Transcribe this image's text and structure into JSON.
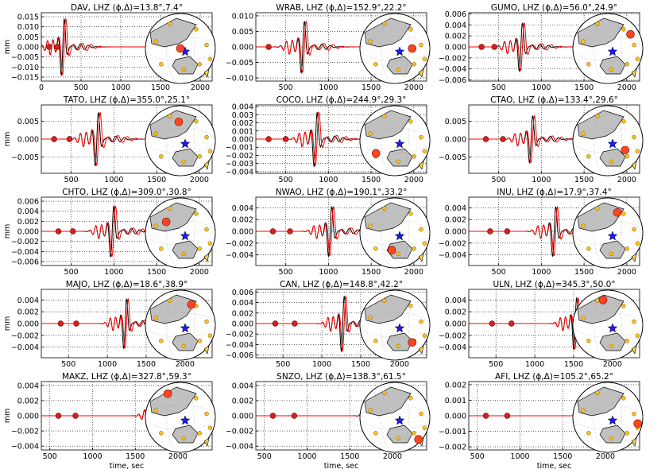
{
  "figure": {
    "ylabel": "mm",
    "xlabel": "time, sec",
    "colors": {
      "observed": "#000000",
      "synthetic": "#ff0000",
      "station": "#ff4422",
      "other_station": "#ffc020",
      "event": "#1a1aff",
      "land": "#c0c0c0"
    }
  },
  "chart_data": [
    {
      "type": "line",
      "station": "DAV",
      "title": "DAV, LHZ (ϕ,Δ)=13.8°,7.4°",
      "xlim": [
        0,
        2150
      ],
      "xticks": [
        "0",
        "500",
        "1000",
        "1500",
        "2000"
      ],
      "ylim": [
        -0.017,
        0.017
      ],
      "yticks": [
        "0.015",
        "0.010",
        "0.005",
        "0.000",
        "−0.005",
        "−0.010",
        "−0.015"
      ],
      "ytickvals": [
        0.015,
        0.01,
        0.005,
        0,
        -0.005,
        -0.01,
        -0.015
      ],
      "arrival": 270,
      "amp": 0.016,
      "station_pos": [
        0.0,
        0.0
      ],
      "markers": [
        100,
        200
      ]
    },
    {
      "type": "line",
      "station": "WRAB",
      "title": "WRAB, LHZ (ϕ,Δ)=152.9°,22.2°",
      "xlim": [
        150,
        2150
      ],
      "xticks": [
        "500",
        "1000",
        "1500",
        "2000"
      ],
      "ylim": [
        -0.011,
        0.011
      ],
      "yticks": [
        "0.010",
        "0.005",
        "0.000",
        "−0.005",
        "−0.010"
      ],
      "ytickvals": [
        0.01,
        0.005,
        0,
        -0.005,
        -0.01
      ],
      "arrival": 700,
      "amp": 0.0095,
      "station_pos": [
        0.55,
        0.0
      ],
      "markers": [
        300
      ]
    },
    {
      "type": "line",
      "station": "GUMO",
      "title": "GUMO, LHZ (ϕ,Δ)=56.0°,24.9°",
      "xlim": [
        150,
        2150
      ],
      "xticks": [
        "500",
        "1000",
        "1500",
        "2000"
      ],
      "ylim": [
        -0.0062,
        0.0062
      ],
      "yticks": [
        "0.006",
        "0.004",
        "0.002",
        "0.000",
        "−0.002",
        "−0.004",
        "−0.006"
      ],
      "ytickvals": [
        0.006,
        0.004,
        0.002,
        0,
        -0.002,
        -0.004,
        -0.006
      ],
      "arrival": 760,
      "amp": 0.005,
      "station_pos": [
        0.72,
        -0.45
      ],
      "markers": [
        300,
        450
      ]
    },
    {
      "type": "line",
      "station": "TATO",
      "title": "TATO, LHZ (ϕ,Δ)=355.0°,25.1°",
      "xlim": [
        150,
        2150
      ],
      "xticks": [
        "500",
        "1000",
        "1500",
        "2000"
      ],
      "ylim": [
        -0.0095,
        0.0095
      ],
      "yticks": [
        "0.005",
        "0.000",
        "−0.005"
      ],
      "ytickvals": [
        0.005,
        0,
        -0.005
      ],
      "arrival": 800,
      "amp": 0.0085,
      "station_pos": [
        -0.05,
        -0.6
      ],
      "markers": [
        300,
        480
      ]
    },
    {
      "type": "line",
      "station": "COCO",
      "title": "COCO, LHZ (ϕ,Δ)=244.9°,29.3°",
      "xlim": [
        150,
        2150
      ],
      "xticks": [
        "500",
        "1000",
        "1500",
        "2000"
      ],
      "ylim": [
        -0.0042,
        0.0042
      ],
      "yticks": [
        "0.004",
        "0.003",
        "0.002",
        "0.001",
        "0.000",
        "−0.001",
        "−0.002",
        "−0.003",
        "−0.004"
      ],
      "ytickvals": [
        0.004,
        0.003,
        0.002,
        0.001,
        0,
        -0.001,
        -0.002,
        -0.003,
        -0.004
      ],
      "arrival": 850,
      "amp": 0.0038,
      "station_pos": [
        -0.6,
        0.4
      ],
      "markers": [
        300,
        500
      ]
    },
    {
      "type": "line",
      "station": "CTAO",
      "title": "CTAO, LHZ (ϕ,Δ)=133.4°,29.6°",
      "xlim": [
        150,
        2150
      ],
      "xticks": [
        "500",
        "1000",
        "1500",
        "2000"
      ],
      "ylim": [
        -0.0095,
        0.0095
      ],
      "yticks": [
        "0.005",
        "0.000",
        "−0.005"
      ],
      "ytickvals": [
        0.005,
        0,
        -0.005
      ],
      "arrival": 880,
      "amp": 0.0075,
      "station_pos": [
        0.55,
        0.3
      ],
      "markers": [
        350,
        550
      ]
    },
    {
      "type": "line",
      "station": "CHTO",
      "title": "CHTO, LHZ (ϕ,Δ)=309.0°,30.8°",
      "xlim": [
        150,
        2150
      ],
      "xticks": [
        "500",
        "1000",
        "1500",
        "2000"
      ],
      "ylim": [
        -0.0068,
        0.0068
      ],
      "yticks": [
        "0.006",
        "0.004",
        "0.002",
        "0.000",
        "−0.002",
        "−0.004",
        "−0.006"
      ],
      "ytickvals": [
        0.006,
        0.004,
        0.002,
        0,
        -0.002,
        -0.004,
        -0.006
      ],
      "arrival": 980,
      "amp": 0.0058,
      "station_pos": [
        -0.45,
        -0.35
      ],
      "markers": [
        350,
        520
      ]
    },
    {
      "type": "line",
      "station": "NWAO",
      "title": "NWAO, LHZ (ϕ,Δ)=190.1°,33.2°",
      "xlim": [
        150,
        2150
      ],
      "xticks": [
        "500",
        "1000",
        "1500",
        "2000"
      ],
      "ylim": [
        -0.0058,
        0.0058
      ],
      "yticks": [
        "0.004",
        "0.002",
        "0.000",
        "−0.002",
        "−0.004"
      ],
      "ytickvals": [
        0.004,
        0.002,
        0,
        -0.002,
        -0.004
      ],
      "arrival": 1020,
      "amp": 0.0048,
      "station_pos": [
        -0.1,
        0.55
      ],
      "markers": [
        350,
        550
      ]
    },
    {
      "type": "line",
      "station": "INU",
      "title": "INU, LHZ (ϕ,Δ)=17.9°,37.4°",
      "xlim": [
        150,
        2150
      ],
      "xticks": [
        "500",
        "1000",
        "1500",
        "2000"
      ],
      "ylim": [
        -0.0058,
        0.0058
      ],
      "yticks": [
        "0.004",
        "0.002",
        "0.000",
        "−0.002",
        "−0.004"
      ],
      "ytickvals": [
        0.004,
        0.002,
        0,
        -0.002,
        -0.004
      ],
      "arrival": 1150,
      "amp": 0.0048,
      "station_pos": [
        0.3,
        -0.65
      ],
      "markers": [
        400,
        600
      ]
    },
    {
      "type": "line",
      "station": "MAJO",
      "title": "MAJO, LHZ (ϕ,Δ)=18.6°,38.9°",
      "xlim": [
        150,
        2350
      ],
      "xticks": [
        "500",
        "1000",
        "1500",
        "2000"
      ],
      "ylim": [
        -0.0058,
        0.0058
      ],
      "yticks": [
        "0.004",
        "0.002",
        "0.000",
        "−0.002",
        "−0.004"
      ],
      "ytickvals": [
        0.004,
        0.002,
        0,
        -0.002,
        -0.004
      ],
      "arrival": 1230,
      "amp": 0.0048,
      "station_pos": [
        0.35,
        -0.65
      ],
      "markers": [
        400,
        600
      ]
    },
    {
      "type": "line",
      "station": "CAN",
      "title": "CAN, LHZ (ϕ,Δ)=148.8°,42.2°",
      "xlim": [
        150,
        2350
      ],
      "xticks": [
        "500",
        "1000",
        "1500",
        "2000"
      ],
      "ylim": [
        -0.0065,
        0.0065
      ],
      "yticks": [
        "0.006",
        "0.004",
        "0.002",
        "0.000",
        "−0.002",
        "−0.004",
        "−0.006"
      ],
      "ytickvals": [
        0.006,
        0.004,
        0.002,
        0,
        -0.002,
        -0.004,
        -0.006
      ],
      "arrival": 1270,
      "amp": 0.006,
      "station_pos": [
        0.55,
        0.55
      ],
      "markers": [
        400,
        650
      ]
    },
    {
      "type": "line",
      "station": "ULN",
      "title": "ULN, LHZ (ϕ,Δ)=345.3°,50.0°",
      "xlim": [
        150,
        2350
      ],
      "xticks": [
        "500",
        "1000",
        "1500",
        "2000"
      ],
      "ylim": [
        -0.0058,
        0.0058
      ],
      "yticks": [
        "0.004",
        "0.002",
        "0.000",
        "−0.002",
        "−0.004"
      ],
      "ytickvals": [
        0.004,
        0.002,
        0,
        -0.002,
        -0.004
      ],
      "arrival": 1520,
      "amp": 0.005,
      "station_pos": [
        -0.15,
        -0.8
      ],
      "markers": [
        450,
        700
      ]
    },
    {
      "type": "line",
      "station": "MAKZ",
      "title": "MAKZ, LHZ (ϕ,Δ)=327.8°,59.3°",
      "xlim": [
        400,
        2400
      ],
      "xticks": [
        "500",
        "1000",
        "1500",
        "2000"
      ],
      "ylim": [
        -0.0045,
        0.0045
      ],
      "yticks": [
        "0.004",
        "0.002",
        "0.000",
        "−0.002",
        "−0.004"
      ],
      "ytickvals": [
        0.004,
        0.002,
        0,
        -0.002,
        -0.004
      ],
      "arrival": 1800,
      "amp": 0.0041,
      "station_pos": [
        -0.4,
        -0.75
      ],
      "markers": [
        600,
        800
      ]
    },
    {
      "type": "line",
      "station": "SNZO",
      "title": "SNZO, LHZ (ϕ,Δ)=138.3°,61.5°",
      "xlim": [
        400,
        2400
      ],
      "xticks": [
        "500",
        "1000",
        "1500",
        "2000"
      ],
      "ylim": [
        -0.0045,
        0.0045
      ],
      "yticks": [
        "0.004",
        "0.002",
        "0.000",
        "−0.002",
        "−0.004"
      ],
      "ytickvals": [
        0.004,
        0.002,
        0,
        -0.002,
        -0.004
      ],
      "arrival": 1880,
      "amp": 0.0038,
      "station_pos": [
        0.75,
        0.7
      ],
      "markers": [
        600,
        850
      ]
    },
    {
      "type": "line",
      "station": "AFI",
      "title": "AFI, LHZ (ϕ,Δ)=105.2°,65.2°",
      "xlim": [
        400,
        2400
      ],
      "xticks": [
        "500",
        "1000",
        "1500",
        "2000"
      ],
      "ylim": [
        -0.0022,
        0.0022
      ],
      "yticks": [
        "0.002",
        "0.001",
        "0.000",
        "−0.001",
        "−0.002"
      ],
      "ytickvals": [
        0.002,
        0.001,
        0,
        -0.001,
        -0.002
      ],
      "arrival": 1960,
      "amp": 0.0021,
      "station_pos": [
        0.95,
        0.2
      ],
      "markers": [
        600,
        850
      ]
    }
  ]
}
